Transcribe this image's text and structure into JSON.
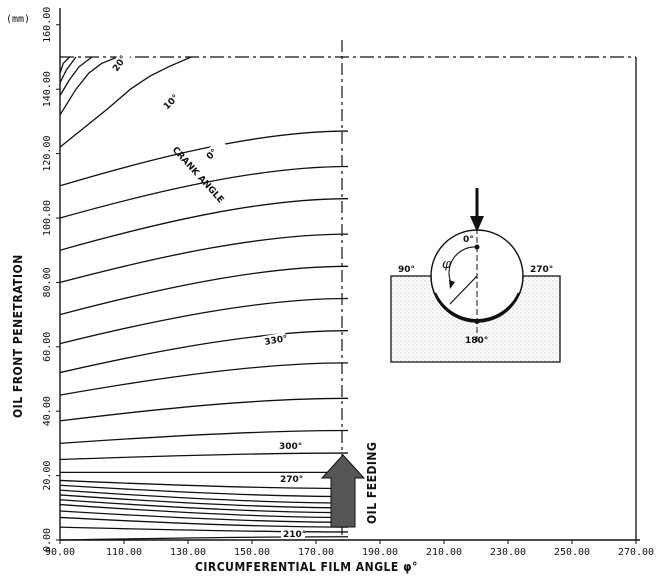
{
  "chart_data": {
    "type": "line",
    "title": "",
    "xlabel": "CIRCUMFERENTIAL FILM ANGLE φ°",
    "ylabel": "OIL FRONT PENETRATION",
    "y_unit": "(mm)",
    "xlim": [
      90,
      270
    ],
    "ylim": [
      0,
      160
    ],
    "x_ticks": [
      "90.00",
      "110.00",
      "130.00",
      "150.00",
      "170.00",
      "190.00",
      "210.00",
      "230.00",
      "250.00",
      "270.00"
    ],
    "y_ticks": [
      "0.00",
      "20.00",
      "40.00",
      "60.00",
      "80.00",
      "100.00",
      "120.00",
      "140.00",
      "160.00"
    ],
    "feeding_angle": 180,
    "feeding_label": "OIL FEEDING",
    "band_label": "CRANK ANGLE",
    "contour_angle_labels": [
      "20°",
      "10°",
      "0°",
      "330°",
      "300°",
      "270°",
      "210°"
    ],
    "series": [
      {
        "label": "210°",
        "x": [
          90,
          180
        ],
        "y": [
          0,
          1
        ]
      },
      {
        "x": [
          90,
          180
        ],
        "y": [
          4,
          2.5
        ]
      },
      {
        "x": [
          90,
          180
        ],
        "y": [
          7,
          4
        ]
      },
      {
        "x": [
          90,
          180
        ],
        "y": [
          9,
          5.5
        ]
      },
      {
        "x": [
          90,
          180
        ],
        "y": [
          11,
          7
        ]
      },
      {
        "x": [
          90,
          180
        ],
        "y": [
          12.5,
          8.5
        ]
      },
      {
        "x": [
          90,
          180
        ],
        "y": [
          14,
          10
        ]
      },
      {
        "x": [
          90,
          180
        ],
        "y": [
          15.5,
          11.5
        ]
      },
      {
        "x": [
          90,
          180
        ],
        "y": [
          17,
          13.5
        ]
      },
      {
        "label": "270°",
        "x": [
          90,
          180
        ],
        "y": [
          18.5,
          16
        ]
      },
      {
        "x": [
          90,
          180
        ],
        "y": [
          21,
          21
        ]
      },
      {
        "label": "300°",
        "x": [
          90,
          180
        ],
        "y": [
          25,
          27
        ]
      },
      {
        "x": [
          90,
          180
        ],
        "y": [
          30,
          34
        ]
      },
      {
        "x": [
          90,
          180
        ],
        "y": [
          37,
          44
        ]
      },
      {
        "x": [
          90,
          180
        ],
        "y": [
          45,
          55
        ]
      },
      {
        "label": "330°",
        "x": [
          90,
          180
        ],
        "y": [
          52,
          65
        ]
      },
      {
        "x": [
          90,
          180
        ],
        "y": [
          61,
          75
        ]
      },
      {
        "x": [
          90,
          180
        ],
        "y": [
          70,
          85
        ]
      },
      {
        "x": [
          90,
          180
        ],
        "y": [
          80,
          95
        ]
      },
      {
        "x": [
          90,
          180
        ],
        "y": [
          90,
          106
        ]
      },
      {
        "x": [
          90,
          180
        ],
        "y": [
          100,
          116
        ]
      },
      {
        "label": "0°",
        "x": [
          90,
          180
        ],
        "y": [
          110,
          127
        ]
      },
      {
        "label": "10°",
        "x": [
          90,
          105,
          112,
          118,
          124,
          131
        ],
        "y": [
          122,
          134,
          140,
          144,
          147,
          150
        ]
      },
      {
        "label": "20°",
        "x": [
          90,
          95,
          99,
          103,
          108
        ],
        "y": [
          132,
          140,
          145,
          148,
          150
        ]
      },
      {
        "x": [
          90,
          93,
          96,
          100
        ],
        "y": [
          138,
          143,
          147,
          150
        ]
      },
      {
        "x": [
          90,
          92,
          95
        ],
        "y": [
          142,
          146,
          150
        ]
      },
      {
        "x": [
          90,
          91,
          93
        ],
        "y": [
          145,
          148,
          150
        ]
      }
    ],
    "inset": {
      "labels": [
        "0°",
        "90°",
        "270°",
        "180°",
        "φ"
      ]
    }
  }
}
